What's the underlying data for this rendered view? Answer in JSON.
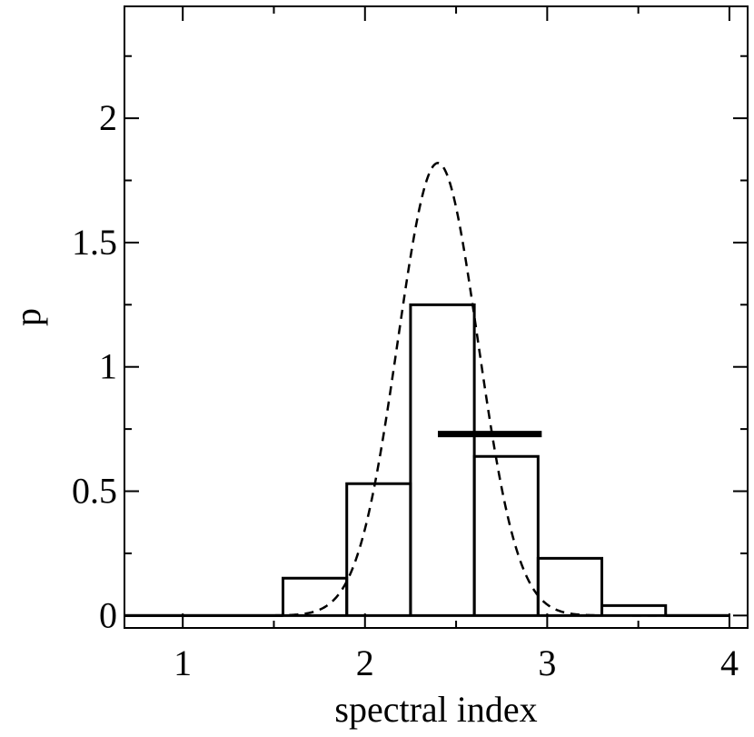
{
  "chart_data": {
    "type": "bar",
    "title": "",
    "xlabel": "spectral index",
    "ylabel": "p",
    "xlim": [
      0.68,
      4.1
    ],
    "ylim": [
      -0.05,
      2.45
    ],
    "grid": false,
    "x_ticks": [
      1,
      2,
      3,
      4
    ],
    "x_tick_labels": [
      "1",
      "2",
      "3",
      "4"
    ],
    "y_ticks": [
      0,
      0.5,
      1,
      1.5,
      2
    ],
    "y_tick_labels": [
      "0",
      "0.5",
      "1",
      "1.5",
      "2"
    ],
    "histogram": {
      "bin_edges": [
        0.68,
        1.55,
        1.9,
        2.25,
        2.6,
        2.95,
        3.3,
        3.65,
        4.0
      ],
      "values": [
        0.0,
        0.15,
        0.53,
        1.25,
        0.64,
        0.23,
        0.04,
        0.0
      ]
    },
    "gaussian_fit": {
      "style": "dashed",
      "mean": 2.4,
      "peak": 1.82,
      "sigma": 0.22
    },
    "mean_bar": {
      "x_start": 2.4,
      "x_end": 2.97,
      "y": 0.73
    },
    "colors": {
      "line": "#000000",
      "background": "#ffffff"
    }
  }
}
